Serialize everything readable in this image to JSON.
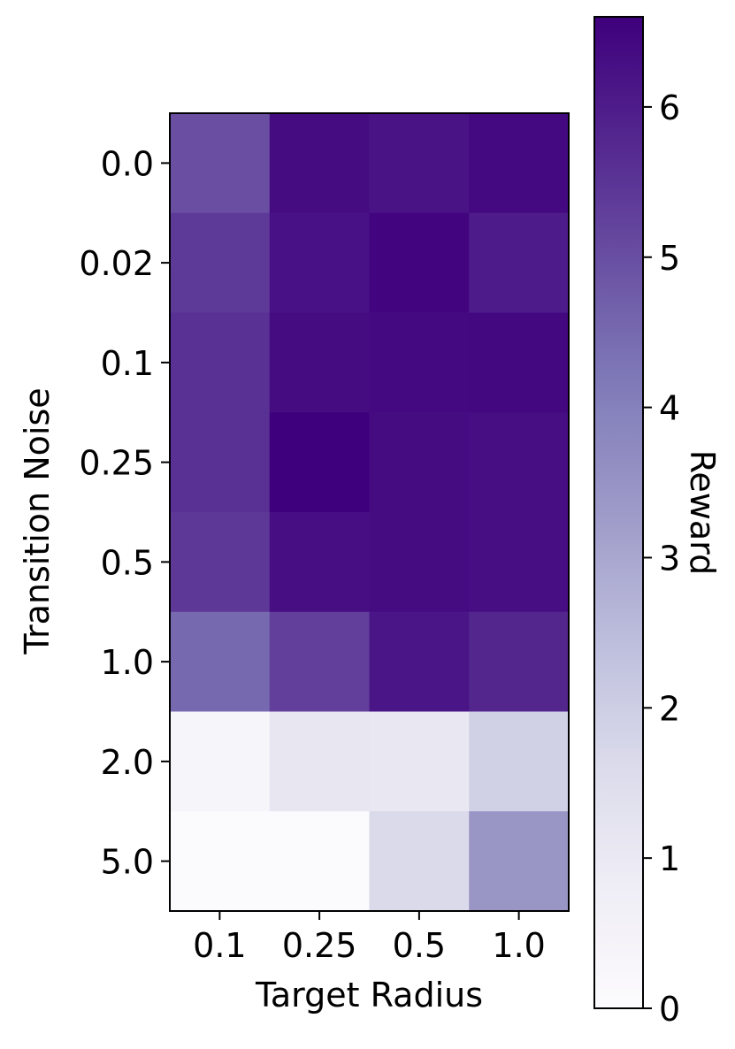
{
  "chart_data": {
    "type": "heatmap",
    "title": "",
    "xlabel": "Target Radius",
    "ylabel": "Transition Noise",
    "x_categories": [
      "0.1",
      "0.25",
      "0.5",
      "1.0"
    ],
    "y_categories": [
      "0.0",
      "0.02",
      "0.1",
      "0.25",
      "0.5",
      "1.0",
      "2.0",
      "5.0"
    ],
    "values": [
      [
        5.0,
        6.35,
        6.2,
        6.4
      ],
      [
        5.4,
        6.25,
        6.5,
        6.0
      ],
      [
        5.6,
        6.35,
        6.4,
        6.45
      ],
      [
        5.6,
        6.6,
        6.35,
        6.3
      ],
      [
        5.45,
        6.3,
        6.35,
        6.3
      ],
      [
        4.5,
        5.3,
        6.15,
        5.8
      ],
      [
        0.35,
        1.15,
        1.1,
        1.9
      ],
      [
        0.05,
        0.05,
        1.65,
        3.45
      ]
    ],
    "colorbar": {
      "label": "Reward",
      "range": [
        0,
        6.6
      ],
      "ticks": [
        "0",
        "1",
        "2",
        "3",
        "4",
        "5",
        "6"
      ],
      "colormap": "Purples",
      "low_color": "#fcfbfd",
      "high_color": "#3f007d"
    }
  }
}
